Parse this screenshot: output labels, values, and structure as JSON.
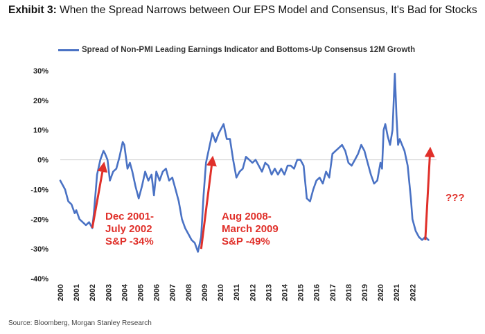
{
  "header": {
    "lead": "Exhibit 3:",
    "title": "When the Spread Narrows between Our EPS Model and Consensus, It's Bad for Stocks"
  },
  "source": "Source: Bloomberg, Morgan Stanley Research",
  "colors": {
    "series": "#4a72c4",
    "annotation": "#e0302a",
    "zero_line": "#d0d0d0"
  },
  "chart_data": {
    "type": "line",
    "legend_position": "top",
    "grid": false,
    "ylim": [
      -40,
      30
    ],
    "yticks": [
      30,
      20,
      10,
      0,
      -10,
      -20,
      -30,
      -40
    ],
    "ytick_labels": [
      "30%",
      "20%",
      "10%",
      "0%",
      "-10%",
      "-20%",
      "-30%",
      "-40%"
    ],
    "xlim": [
      2000,
      2023.5
    ],
    "xticks": [
      2000,
      2001,
      2002,
      2003,
      2004,
      2005,
      2006,
      2007,
      2008,
      2009,
      2010,
      2011,
      2012,
      2013,
      2014,
      2015,
      2016,
      2017,
      2018,
      2019,
      2020,
      2021,
      2022
    ],
    "xtick_labels": [
      "2000",
      "2001",
      "2002",
      "2003",
      "2004",
      "2005",
      "2006",
      "2007",
      "2008",
      "2009",
      "2010",
      "2011",
      "2012",
      "2013",
      "2014",
      "2015",
      "2016",
      "2017",
      "2018",
      "2019",
      "2020",
      "2021",
      "2022"
    ],
    "series": [
      {
        "name": "Spread of Non-PMI Leading Earnings Indicator and Bottoms-Up Consensus 12M Growth",
        "x": [
          2000.0,
          2000.1,
          2000.3,
          2000.5,
          2000.7,
          2000.9,
          2001.0,
          2001.2,
          2001.4,
          2001.6,
          2001.8,
          2002.0,
          2002.1,
          2002.3,
          2002.5,
          2002.7,
          2002.8,
          2002.95,
          2003.1,
          2003.3,
          2003.5,
          2003.7,
          2003.9,
          2004.0,
          2004.2,
          2004.35,
          2004.5,
          2004.7,
          2004.9,
          2005.1,
          2005.3,
          2005.5,
          2005.7,
          2005.85,
          2006.0,
          2006.2,
          2006.4,
          2006.6,
          2006.8,
          2007.0,
          2007.2,
          2007.4,
          2007.6,
          2007.8,
          2008.0,
          2008.2,
          2008.4,
          2008.6,
          2008.8,
          2008.95,
          2009.1,
          2009.3,
          2009.5,
          2009.7,
          2009.9,
          2010.0,
          2010.2,
          2010.4,
          2010.6,
          2010.8,
          2011.0,
          2011.2,
          2011.4,
          2011.6,
          2011.8,
          2012.0,
          2012.2,
          2012.4,
          2012.6,
          2012.8,
          2013.0,
          2013.2,
          2013.4,
          2013.6,
          2013.8,
          2014.0,
          2014.2,
          2014.4,
          2014.6,
          2014.8,
          2015.0,
          2015.2,
          2015.4,
          2015.6,
          2015.8,
          2016.0,
          2016.2,
          2016.4,
          2016.6,
          2016.8,
          2017.0,
          2017.2,
          2017.4,
          2017.6,
          2017.8,
          2018.0,
          2018.2,
          2018.4,
          2018.6,
          2018.8,
          2019.0,
          2019.2,
          2019.4,
          2019.6,
          2019.8,
          2020.0,
          2020.1,
          2020.2,
          2020.3,
          2020.45,
          2020.6,
          2020.75,
          2020.9,
          2021.0,
          2021.1,
          2021.2,
          2021.35,
          2021.5,
          2021.7,
          2021.9,
          2022.0,
          2022.2,
          2022.4,
          2022.6,
          2022.8,
          2023.0
        ],
        "y": [
          -7,
          -8,
          -10,
          -14,
          -15,
          -18,
          -17,
          -20,
          -21,
          -22,
          -21,
          -23,
          -18,
          -5,
          0,
          3,
          2,
          0,
          -7,
          -4,
          -3,
          1,
          6,
          5,
          -3,
          -1,
          -4,
          -9,
          -13,
          -9,
          -4,
          -7,
          -5,
          -12,
          -4,
          -7,
          -4,
          -3,
          -7,
          -6,
          -10,
          -14,
          -20,
          -23,
          -25,
          -27,
          -28,
          -31,
          -26,
          -12,
          -1,
          4,
          9,
          6,
          9,
          10,
          12,
          7,
          7,
          0,
          -6,
          -4,
          -3,
          1,
          0,
          -1,
          0,
          -2,
          -4,
          -1,
          -2,
          -5,
          -3,
          -5,
          -3,
          -5,
          -2,
          -2,
          -3,
          0,
          0,
          -2,
          -13,
          -14,
          -10,
          -7,
          -6,
          -8,
          -4,
          -6,
          2,
          3,
          4,
          5,
          3,
          -1,
          -2,
          0,
          2,
          5,
          3,
          -1,
          -5,
          -8,
          -7,
          -1,
          -3,
          10,
          12,
          8,
          5,
          10,
          29,
          15,
          5,
          7,
          5,
          3,
          -2,
          -13,
          -20,
          -24,
          -26,
          -27,
          -26,
          -27
        ]
      }
    ],
    "annotations": [
      {
        "lines": [
          "Dec 2001-",
          "July 2002",
          "S&P -34%"
        ],
        "arrow_from": [
          2002.0,
          -23
        ],
        "arrow_to": [
          2002.7,
          -2
        ]
      },
      {
        "lines": [
          "Aug 2008-",
          "March 2009",
          "S&P -49%"
        ],
        "arrow_from": [
          2008.8,
          -30
        ],
        "arrow_to": [
          2009.5,
          0
        ]
      },
      {
        "lines": [
          "???"
        ],
        "arrow_from": [
          2022.8,
          -27
        ],
        "arrow_to": [
          2023.1,
          3
        ]
      }
    ]
  }
}
